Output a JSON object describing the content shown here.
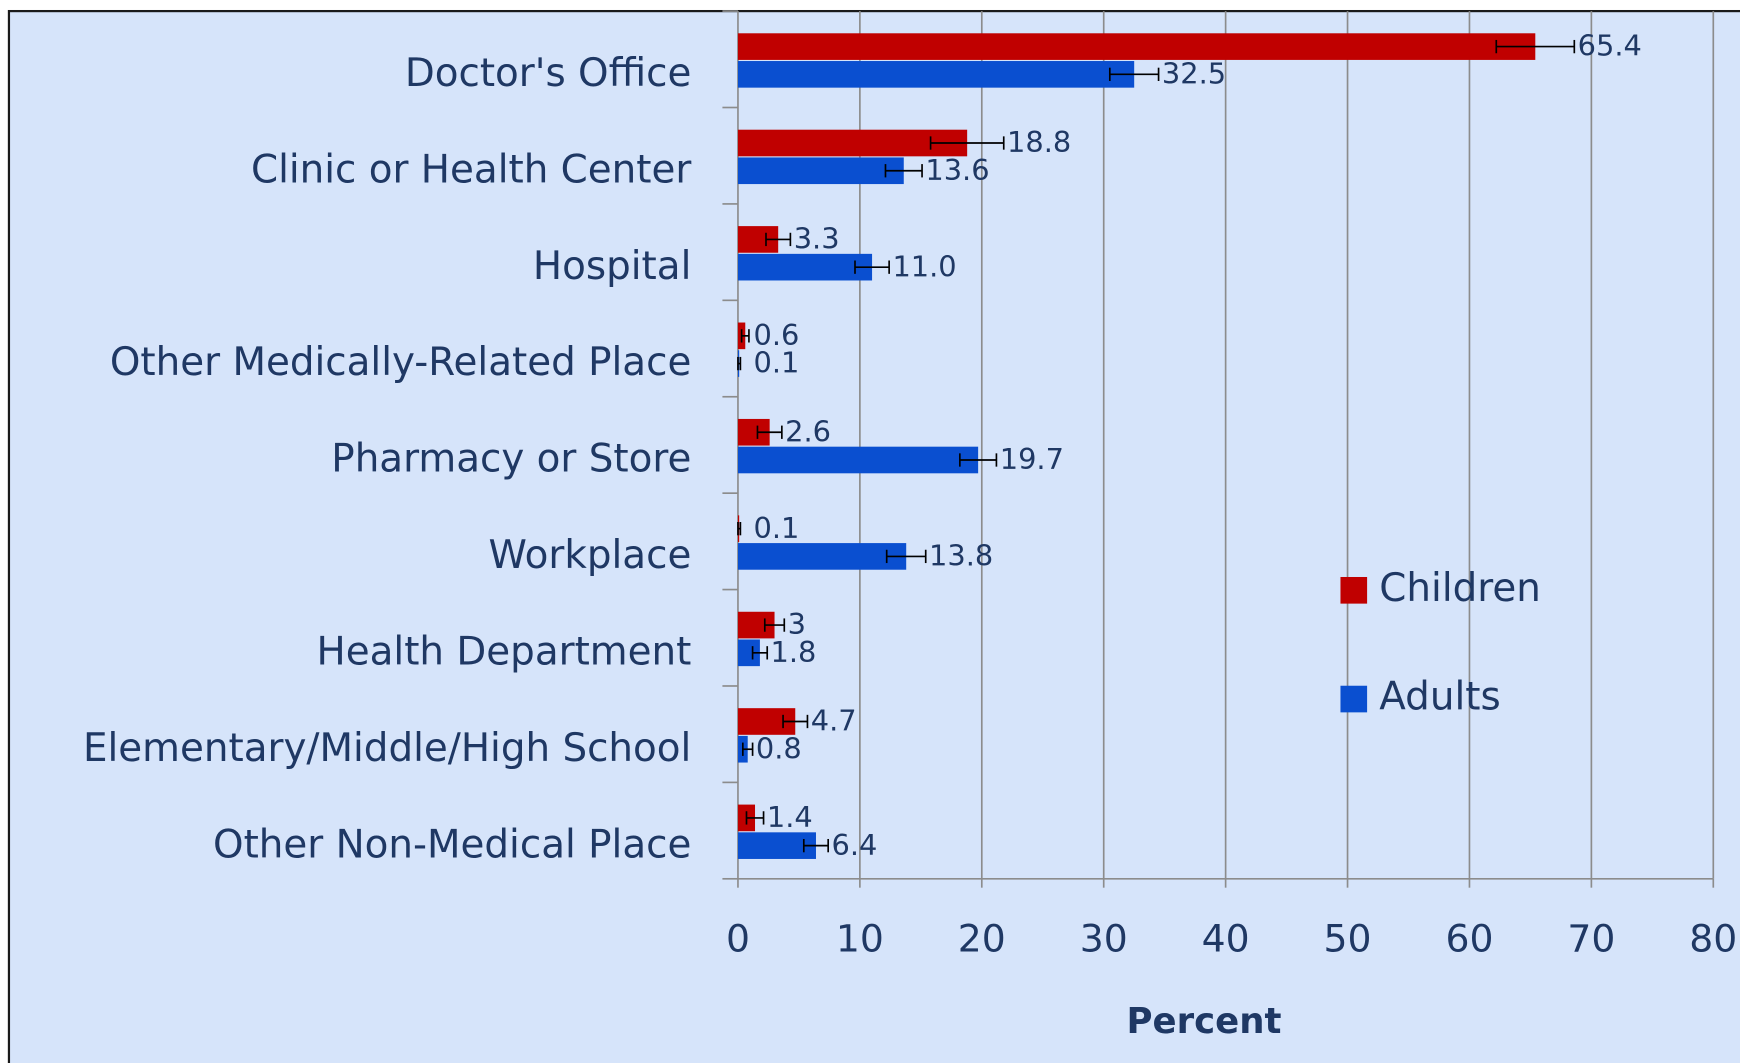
{
  "chart_data": {
    "type": "hbar",
    "categories": [
      "Doctor's Office",
      "Clinic or Health Center",
      "Hospital",
      "Other Medically-Related Place",
      "Pharmacy or Store",
      "Workplace",
      "Health Department",
      "Elementary/Middle/High School",
      "Other Non-Medical Place"
    ],
    "series": [
      {
        "name": "Children",
        "color": "#c00000",
        "values": [
          65.4,
          18.8,
          3.3,
          0.6,
          2.6,
          0.1,
          3,
          4.7,
          1.4
        ],
        "value_labels": [
          "65.4",
          "18.8",
          "3.3",
          "0.6",
          "2.6",
          "0.1",
          "3",
          "4.7",
          "1.4"
        ],
        "errors": [
          3.2,
          3,
          1,
          0.3,
          1,
          0.1,
          0.8,
          1,
          0.7
        ]
      },
      {
        "name": "Adults",
        "color": "#0a4fd0",
        "values": [
          32.5,
          13.6,
          11.0,
          0.1,
          19.7,
          13.8,
          1.8,
          0.8,
          6.4
        ],
        "value_labels": [
          "32.5",
          "13.6",
          "11.0",
          "0.1",
          "19.7",
          "13.8",
          "1.8",
          "0.8",
          "6.4"
        ],
        "errors": [
          2,
          1.5,
          1.4,
          0.1,
          1.5,
          1.6,
          0.6,
          0.4,
          1
        ]
      }
    ],
    "xlabel": "Percent",
    "xlim": [
      0,
      80
    ],
    "xticks": [
      0,
      10,
      20,
      30,
      40,
      50,
      60,
      70,
      80
    ],
    "grid": true,
    "legend": "right"
  }
}
